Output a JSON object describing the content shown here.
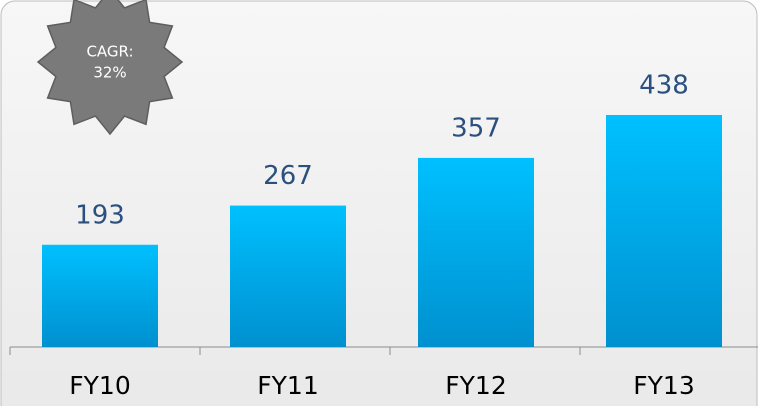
{
  "chart_data": {
    "type": "bar",
    "categories": [
      "FY10",
      "FY11",
      "FY12",
      "FY13"
    ],
    "values": [
      193,
      267,
      357,
      438
    ],
    "color": "#00b4f0",
    "annotation": [
      "CAGR:",
      "32%"
    ]
  }
}
